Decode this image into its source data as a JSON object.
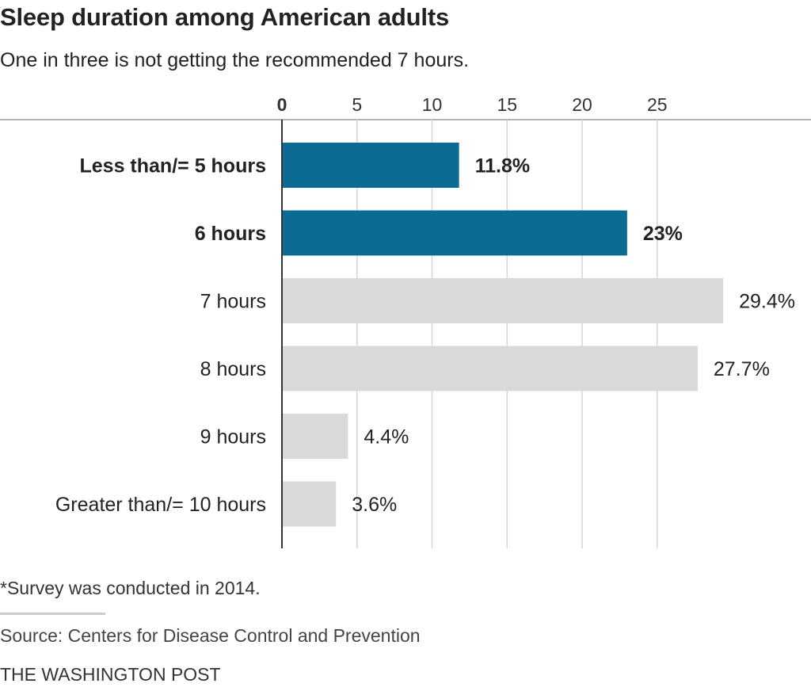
{
  "header": {
    "title": "Sleep duration among American adults",
    "subtitle": "One in three is not getting the recommended 7 hours."
  },
  "chart_data": {
    "type": "bar",
    "orientation": "horizontal",
    "categories": [
      "Less than/= 5 hours",
      "6 hours",
      "7 hours",
      "8 hours",
      "9 hours",
      "Greater than/= 10 hours"
    ],
    "values": [
      11.8,
      23,
      29.4,
      27.7,
      4.4,
      3.6
    ],
    "value_labels": [
      "11.8%",
      "23%",
      "29.4%",
      "27.7%",
      "4.4%",
      "3.6%"
    ],
    "highlighted": [
      true,
      true,
      false,
      false,
      false,
      false
    ],
    "xticks": [
      0,
      5,
      10,
      15,
      20,
      25
    ],
    "xlim": [
      0,
      29.4
    ],
    "axis_position": "top",
    "grid": true,
    "colors": {
      "highlight": "#0b6b92",
      "default": "#d9d9d7",
      "gridline": "#d6d6d6",
      "axis": "#333333"
    }
  },
  "footer": {
    "note": "*Survey was conducted in 2014.",
    "source": "Source: Centers for Disease Control and Prevention",
    "credit": "THE WASHINGTON POST"
  }
}
